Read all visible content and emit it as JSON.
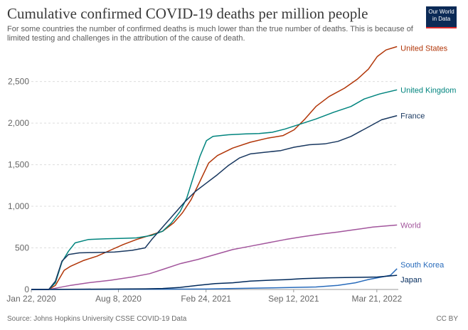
{
  "chart_data": {
    "type": "line",
    "title": "Cumulative confirmed COVID-19 deaths per million people",
    "subtitle": "For some countries the number of confirmed deaths is much lower than the true number of deaths. This is because of limited testing and challenges in the attribution of the cause of death.",
    "xlabel": "",
    "ylabel": "",
    "x_ticks": [
      {
        "label": "Jan 22, 2020",
        "day": 0
      },
      {
        "label": "Aug 8, 2020",
        "day": 199
      },
      {
        "label": "Feb 24, 2021",
        "day": 399
      },
      {
        "label": "Sep 12, 2021",
        "day": 599
      },
      {
        "label": "Mar 21, 2022",
        "day": 789
      }
    ],
    "xlim": [
      0,
      838
    ],
    "ylim": [
      0,
      2950
    ],
    "y_ticks": [
      0,
      500,
      1000,
      1500,
      2000,
      2500
    ],
    "y_tick_labels": [
      "0",
      "500",
      "1,000",
      "1,500",
      "2,000",
      "2,500"
    ],
    "grid": true,
    "series": [
      {
        "name": "United States",
        "color": "#b13507",
        "points": [
          [
            0,
            0
          ],
          [
            40,
            0
          ],
          [
            55,
            50
          ],
          [
            75,
            230
          ],
          [
            90,
            280
          ],
          [
            120,
            350
          ],
          [
            150,
            400
          ],
          [
            180,
            470
          ],
          [
            210,
            540
          ],
          [
            240,
            600
          ],
          [
            270,
            650
          ],
          [
            300,
            700
          ],
          [
            325,
            800
          ],
          [
            345,
            920
          ],
          [
            365,
            1080
          ],
          [
            385,
            1300
          ],
          [
            405,
            1520
          ],
          [
            425,
            1610
          ],
          [
            460,
            1700
          ],
          [
            500,
            1770
          ],
          [
            540,
            1820
          ],
          [
            575,
            1850
          ],
          [
            600,
            1920
          ],
          [
            625,
            2050
          ],
          [
            650,
            2200
          ],
          [
            680,
            2320
          ],
          [
            715,
            2420
          ],
          [
            745,
            2530
          ],
          [
            770,
            2650
          ],
          [
            790,
            2800
          ],
          [
            810,
            2880
          ],
          [
            835,
            2920
          ]
        ]
      },
      {
        "name": "United Kingdom",
        "color": "#00847e",
        "points": [
          [
            0,
            0
          ],
          [
            40,
            0
          ],
          [
            55,
            80
          ],
          [
            70,
            330
          ],
          [
            85,
            460
          ],
          [
            100,
            560
          ],
          [
            130,
            600
          ],
          [
            170,
            610
          ],
          [
            210,
            615
          ],
          [
            240,
            620
          ],
          [
            275,
            650
          ],
          [
            300,
            700
          ],
          [
            320,
            800
          ],
          [
            340,
            940
          ],
          [
            355,
            1100
          ],
          [
            370,
            1350
          ],
          [
            385,
            1600
          ],
          [
            400,
            1790
          ],
          [
            415,
            1840
          ],
          [
            450,
            1860
          ],
          [
            490,
            1870
          ],
          [
            520,
            1875
          ],
          [
            550,
            1890
          ],
          [
            580,
            1930
          ],
          [
            615,
            1990
          ],
          [
            650,
            2050
          ],
          [
            690,
            2130
          ],
          [
            730,
            2200
          ],
          [
            760,
            2290
          ],
          [
            795,
            2350
          ],
          [
            835,
            2400
          ]
        ]
      },
      {
        "name": "France",
        "color": "#18375f",
        "points": [
          [
            0,
            0
          ],
          [
            40,
            0
          ],
          [
            55,
            100
          ],
          [
            70,
            340
          ],
          [
            85,
            420
          ],
          [
            110,
            440
          ],
          [
            150,
            445
          ],
          [
            190,
            450
          ],
          [
            230,
            470
          ],
          [
            260,
            500
          ],
          [
            275,
            600
          ],
          [
            300,
            750
          ],
          [
            325,
            900
          ],
          [
            350,
            1050
          ],
          [
            375,
            1180
          ],
          [
            400,
            1280
          ],
          [
            425,
            1380
          ],
          [
            450,
            1490
          ],
          [
            475,
            1580
          ],
          [
            500,
            1630
          ],
          [
            535,
            1650
          ],
          [
            570,
            1670
          ],
          [
            600,
            1710
          ],
          [
            635,
            1740
          ],
          [
            670,
            1750
          ],
          [
            700,
            1780
          ],
          [
            730,
            1840
          ],
          [
            765,
            1940
          ],
          [
            800,
            2040
          ],
          [
            835,
            2090
          ]
        ]
      },
      {
        "name": "World",
        "color": "#a2559c",
        "points": [
          [
            0,
            0
          ],
          [
            40,
            0
          ],
          [
            60,
            20
          ],
          [
            90,
            50
          ],
          [
            130,
            80
          ],
          [
            180,
            110
          ],
          [
            230,
            150
          ],
          [
            270,
            190
          ],
          [
            300,
            240
          ],
          [
            340,
            310
          ],
          [
            380,
            360
          ],
          [
            420,
            420
          ],
          [
            460,
            480
          ],
          [
            500,
            520
          ],
          [
            540,
            560
          ],
          [
            580,
            600
          ],
          [
            620,
            635
          ],
          [
            660,
            665
          ],
          [
            700,
            690
          ],
          [
            740,
            720
          ],
          [
            780,
            750
          ],
          [
            835,
            775
          ]
        ]
      },
      {
        "name": "South Korea",
        "color": "#286bbb",
        "points": [
          [
            0,
            0
          ],
          [
            100,
            1
          ],
          [
            200,
            2
          ],
          [
            300,
            3
          ],
          [
            400,
            5
          ],
          [
            450,
            10
          ],
          [
            500,
            15
          ],
          [
            550,
            20
          ],
          [
            600,
            25
          ],
          [
            650,
            30
          ],
          [
            700,
            50
          ],
          [
            740,
            80
          ],
          [
            770,
            120
          ],
          [
            800,
            150
          ],
          [
            820,
            170
          ],
          [
            835,
            250
          ]
        ]
      },
      {
        "name": "Japan",
        "color": "#00295b",
        "points": [
          [
            0,
            0
          ],
          [
            60,
            1
          ],
          [
            120,
            3
          ],
          [
            200,
            5
          ],
          [
            260,
            8
          ],
          [
            300,
            12
          ],
          [
            340,
            25
          ],
          [
            380,
            50
          ],
          [
            420,
            70
          ],
          [
            460,
            80
          ],
          [
            500,
            100
          ],
          [
            540,
            110
          ],
          [
            580,
            118
          ],
          [
            620,
            130
          ],
          [
            680,
            140
          ],
          [
            740,
            145
          ],
          [
            790,
            150
          ],
          [
            835,
            170
          ]
        ]
      }
    ],
    "label_nudge": {
      "United States": 2,
      "United Kingdom": 0,
      "France": 0,
      "World": 0,
      "South Korea": -6,
      "Japan": 6
    }
  },
  "source": "Source: Johns Hopkins University CSSE COVID-19 Data",
  "license": "CC BY",
  "logo": {
    "line1": "Our World",
    "line2": "in Data"
  }
}
